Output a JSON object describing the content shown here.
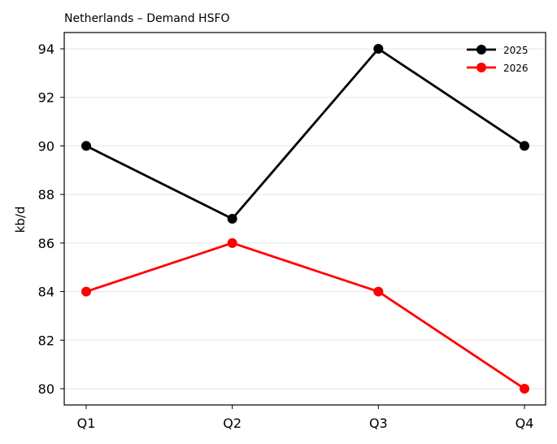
{
  "chart_data": {
    "type": "line",
    "title": "Netherlands – Demand HSFO",
    "xlabel": "",
    "ylabel": "kb/d",
    "categories": [
      "Q1",
      "Q2",
      "Q3",
      "Q4"
    ],
    "series": [
      {
        "name": "2025",
        "values": [
          90,
          87,
          94,
          90
        ],
        "color": "#000000"
      },
      {
        "name": "2026",
        "values": [
          84,
          86,
          84,
          80
        ],
        "color": "#ff0000"
      }
    ],
    "ylim": [
      79.33,
      94.67
    ],
    "yticks": [
      80,
      82,
      84,
      86,
      88,
      90,
      92,
      94
    ],
    "grid": "horizontal",
    "legend_position": "top-right"
  }
}
